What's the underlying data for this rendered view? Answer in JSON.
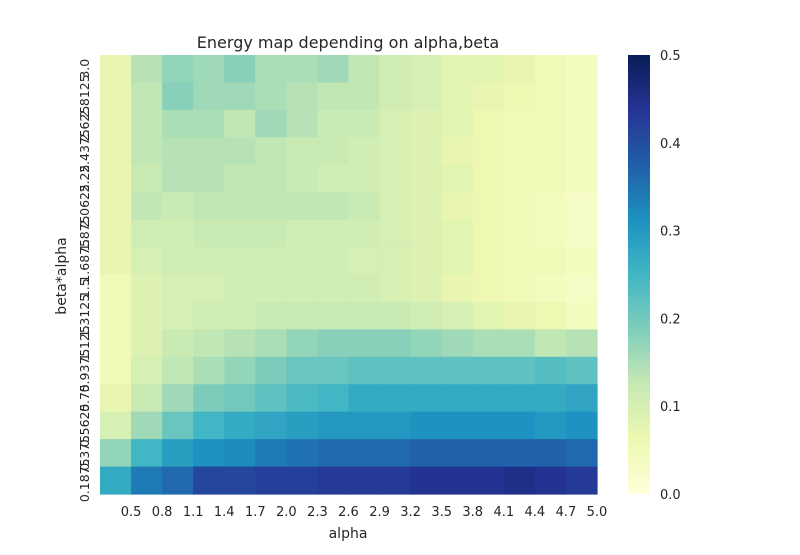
{
  "chart_data": {
    "type": "heatmap",
    "title": "Energy map depending on alpha,beta",
    "xlabel": "alpha",
    "ylabel": "beta*alpha",
    "x_ticks": [
      "0.5",
      "0.8",
      "1.1",
      "1.4",
      "1.7",
      "2.0",
      "2.3",
      "2.6",
      "2.9",
      "3.2",
      "3.5",
      "3.8",
      "4.1",
      "4.4",
      "4.7",
      "5.0"
    ],
    "y_ticks_bottom_to_top": [
      "0.1875",
      "0.375",
      "0.5625",
      "0.75",
      "0.9375",
      "1.125",
      "1.3125",
      "1.5",
      "1.6875",
      "1.875",
      "2.0625",
      "2.25",
      "2.4375",
      "2.625",
      "2.8125",
      "3.0"
    ],
    "colorbar": {
      "range": [
        0.0,
        0.5
      ],
      "ticks": [
        "0.0",
        "0.1",
        "0.2",
        "0.3",
        "0.4",
        "0.5"
      ],
      "colormap": "YlGnBu",
      "stops": [
        "#ffffd9",
        "#edf8b1",
        "#c7e9b4",
        "#7fcdbb",
        "#41b6c4",
        "#1d91c0",
        "#225ea8",
        "#253494",
        "#081d58"
      ]
    },
    "values_top_to_bottom": [
      [
        0.07,
        0.14,
        0.17,
        0.16,
        0.18,
        0.15,
        0.15,
        0.16,
        0.13,
        0.11,
        0.1,
        0.08,
        0.08,
        0.07,
        0.05,
        0.04
      ],
      [
        0.07,
        0.13,
        0.18,
        0.16,
        0.16,
        0.15,
        0.14,
        0.13,
        0.13,
        0.11,
        0.1,
        0.08,
        0.07,
        0.06,
        0.05,
        0.04
      ],
      [
        0.07,
        0.13,
        0.15,
        0.15,
        0.13,
        0.16,
        0.14,
        0.12,
        0.12,
        0.1,
        0.09,
        0.08,
        0.06,
        0.05,
        0.05,
        0.04
      ],
      [
        0.07,
        0.13,
        0.14,
        0.14,
        0.14,
        0.13,
        0.12,
        0.12,
        0.11,
        0.1,
        0.09,
        0.07,
        0.06,
        0.05,
        0.05,
        0.04
      ],
      [
        0.07,
        0.12,
        0.14,
        0.14,
        0.13,
        0.13,
        0.12,
        0.11,
        0.11,
        0.1,
        0.09,
        0.08,
        0.06,
        0.05,
        0.05,
        0.04
      ],
      [
        0.07,
        0.13,
        0.12,
        0.13,
        0.13,
        0.13,
        0.13,
        0.13,
        0.12,
        0.1,
        0.09,
        0.07,
        0.06,
        0.05,
        0.04,
        0.03
      ],
      [
        0.07,
        0.11,
        0.11,
        0.12,
        0.12,
        0.12,
        0.11,
        0.11,
        0.11,
        0.1,
        0.09,
        0.08,
        0.06,
        0.05,
        0.04,
        0.03
      ],
      [
        0.07,
        0.1,
        0.11,
        0.11,
        0.11,
        0.11,
        0.11,
        0.11,
        0.1,
        0.1,
        0.09,
        0.08,
        0.06,
        0.05,
        0.05,
        0.04
      ],
      [
        0.05,
        0.09,
        0.1,
        0.1,
        0.11,
        0.11,
        0.11,
        0.11,
        0.11,
        0.1,
        0.09,
        0.07,
        0.06,
        0.05,
        0.04,
        0.03
      ],
      [
        0.05,
        0.09,
        0.1,
        0.11,
        0.11,
        0.12,
        0.12,
        0.12,
        0.12,
        0.12,
        0.11,
        0.1,
        0.08,
        0.07,
        0.06,
        0.04
      ],
      [
        0.05,
        0.09,
        0.12,
        0.13,
        0.14,
        0.15,
        0.17,
        0.18,
        0.18,
        0.18,
        0.17,
        0.16,
        0.15,
        0.15,
        0.13,
        0.14
      ],
      [
        0.05,
        0.1,
        0.13,
        0.15,
        0.17,
        0.19,
        0.21,
        0.21,
        0.22,
        0.22,
        0.22,
        0.22,
        0.22,
        0.22,
        0.23,
        0.22
      ],
      [
        0.07,
        0.12,
        0.16,
        0.19,
        0.2,
        0.22,
        0.24,
        0.25,
        0.27,
        0.27,
        0.27,
        0.27,
        0.27,
        0.27,
        0.27,
        0.28
      ],
      [
        0.1,
        0.16,
        0.21,
        0.25,
        0.27,
        0.28,
        0.29,
        0.3,
        0.3,
        0.3,
        0.31,
        0.31,
        0.31,
        0.31,
        0.3,
        0.31
      ],
      [
        0.17,
        0.25,
        0.29,
        0.31,
        0.32,
        0.34,
        0.35,
        0.36,
        0.36,
        0.36,
        0.37,
        0.37,
        0.37,
        0.37,
        0.37,
        0.36
      ],
      [
        0.27,
        0.34,
        0.36,
        0.41,
        0.41,
        0.42,
        0.42,
        0.43,
        0.43,
        0.43,
        0.44,
        0.44,
        0.44,
        0.45,
        0.44,
        0.43
      ]
    ]
  }
}
